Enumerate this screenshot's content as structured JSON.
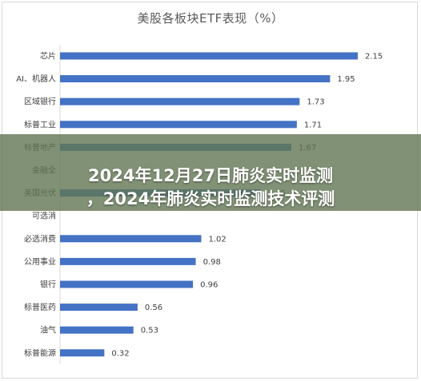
{
  "chart_data": {
    "type": "bar",
    "orientation": "horizontal",
    "title": "美股各板块ETF表现（%）",
    "categories": [
      "芯片",
      "AI、机器人",
      "区域银行",
      "标普工业",
      "标普地产",
      "金融全",
      "美国光伏",
      "可选消",
      "必选消费",
      "公用事业",
      "银行",
      "标普医药",
      "油气",
      "标普能源"
    ],
    "values": [
      2.15,
      1.95,
      1.73,
      1.71,
      1.67,
      null,
      1.45,
      null,
      1.02,
      0.98,
      0.96,
      0.56,
      0.53,
      0.32
    ],
    "value_labels": [
      "2.15",
      "1.95",
      "1.73",
      "1.71",
      "1.67",
      "",
      "1.45",
      "",
      "1.02",
      "0.98",
      "0.96",
      "0.56",
      "0.53",
      "0.32"
    ],
    "xlim": [
      0,
      2.5
    ],
    "bar_color": "#4472c4",
    "grid": false,
    "legend": "none"
  },
  "overlay": {
    "line1": "2024年12月27日肺炎实时监测",
    "line2": "，2024年肺炎实时监测技术评测",
    "background": "#607652"
  }
}
